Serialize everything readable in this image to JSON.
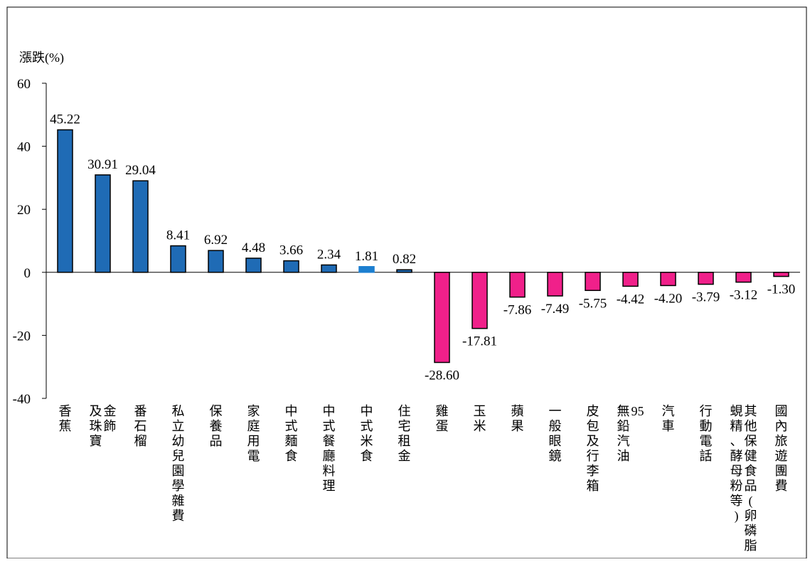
{
  "chart_data": {
    "type": "bar",
    "title": "",
    "xlabel": "",
    "ylabel": "漲跌(%)",
    "ylim": [
      -40,
      60
    ],
    "yticks": [
      60,
      40,
      20,
      0,
      -20,
      -40
    ],
    "grid": false,
    "legend": "none",
    "colors": {
      "positive": "#1F6BB5",
      "negative": "#F0208A",
      "highlight": "#1C7FD0",
      "outline": "#000000"
    },
    "categories": [
      "香蕉",
      "金飾及珠寶",
      "番石榴",
      "私立幼兒園學雜費",
      "保養品",
      "家庭用電",
      "中式麵食",
      "中式餐廳料理",
      "中式米食",
      "住宅租金",
      "雞蛋",
      "玉米",
      "蘋果",
      "一般眼鏡",
      "皮包及行李箱",
      "95無鉛汽油",
      "汽車",
      "行動電話",
      "其他保健食品(卵磷脂、蜆精、酵母粉等)",
      "國內旅遊團費"
    ],
    "values": [
      45.22,
      30.91,
      29.04,
      8.41,
      6.92,
      4.48,
      3.66,
      2.34,
      1.81,
      0.82,
      -28.6,
      -17.81,
      -7.86,
      -7.49,
      -5.75,
      -4.42,
      -4.2,
      -3.79,
      -3.12,
      -1.3
    ],
    "value_labels": [
      "45.22",
      "30.91",
      "29.04",
      "8.41",
      "6.92",
      "4.48",
      "3.66",
      "2.34",
      "1.81",
      "0.82",
      "-28.60",
      "-17.81",
      "-7.86",
      "-7.49",
      "-5.75",
      "-4.42",
      "-4.20",
      "-3.79",
      "-3.12",
      "-1.30"
    ],
    "label_columns": [
      [
        "香蕉"
      ],
      [
        "金飾",
        "及珠寶"
      ],
      [
        "番石榴"
      ],
      [
        "私立幼兒園學雜費"
      ],
      [
        "保養品"
      ],
      [
        "家庭用電"
      ],
      [
        "中式麵食"
      ],
      [
        "中式餐廳料理"
      ],
      [
        "中式米食"
      ],
      [
        "住宅租金"
      ],
      [
        "雞蛋"
      ],
      [
        "玉米"
      ],
      [
        "蘋果"
      ],
      [
        "一般眼鏡"
      ],
      [
        "皮包及行李箱"
      ],
      [
        "95",
        "無鉛汽油"
      ],
      [
        "汽車"
      ],
      [
        "行動電話"
      ],
      [
        "其他保健食品(卵磷脂、",
        "蜆精、酵母粉等)"
      ],
      [
        "國內旅遊團費"
      ]
    ]
  }
}
